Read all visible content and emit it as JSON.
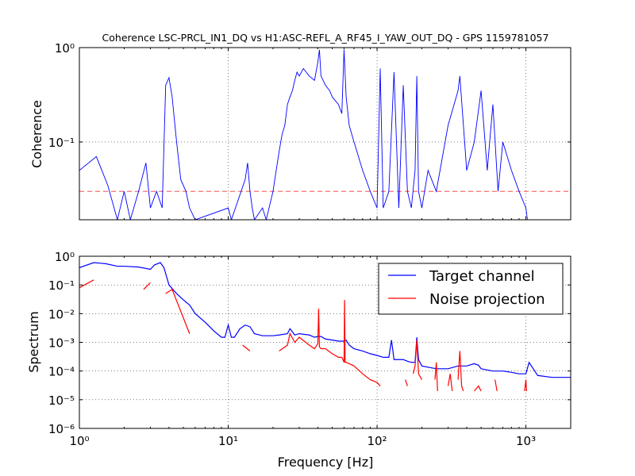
{
  "figure": {
    "title": "Coherence LSC-PRCL_IN1_DQ vs H1:ASC-REFL_A_RF45_I_YAW_OUT_DQ - GPS 1159781057",
    "xlabel": "Frequency [Hz]"
  },
  "chart_data": [
    {
      "type": "line",
      "panel": "top",
      "title": "Coherence LSC-PRCL_IN1_DQ vs H1:ASC-REFL_A_RF45_I_YAW_OUT_DQ - GPS 1159781057",
      "ylabel": "Coherence",
      "xscale": "log",
      "yscale": "log",
      "xlim": [
        1,
        2000
      ],
      "ylim": [
        0.015,
        1
      ],
      "grid": true,
      "x_ticks": [
        1,
        10,
        100,
        1000
      ],
      "y_ticks": [
        0.1,
        1
      ],
      "threshold": {
        "value": 0.03,
        "color": "#ff0000",
        "style": "dashed"
      },
      "series": [
        {
          "color": "#0000ff",
          "x": [
            1.0,
            1.3,
            1.55,
            1.8,
            2.0,
            2.2,
            2.5,
            2.8,
            3.0,
            3.3,
            3.6,
            3.8,
            4.0,
            4.2,
            4.5,
            4.8,
            5.2,
            5.5,
            6.0,
            10.0,
            10.5,
            13.0,
            13.5,
            14.0,
            14.5,
            15.0,
            17.0,
            18.0,
            20.0,
            21.0,
            22.0,
            23.0,
            24.0,
            25.0,
            26.0,
            27.0,
            28.0,
            29.0,
            30.0,
            32.0,
            35.0,
            38.0,
            40.0,
            41.0,
            42.0,
            45.0,
            48.0,
            50.0,
            55.0,
            58.0,
            60.0,
            62.0,
            65.0,
            70.0,
            75.0,
            80.0,
            90.0,
            100.0,
            105.0,
            110.0,
            120.0,
            130.0,
            140.0,
            150.0,
            160.0,
            170.0,
            180.0,
            185.0,
            190.0,
            200.0,
            220.0,
            250.0,
            300.0,
            350.0,
            360.0,
            400.0,
            450.0,
            500.0,
            550.0,
            600.0,
            650.0,
            700.0,
            800.0,
            900.0,
            1000.0,
            1024.0
          ],
          "values": [
            0.05,
            0.07,
            0.035,
            0.015,
            0.03,
            0.015,
            0.03,
            0.06,
            0.02,
            0.03,
            0.02,
            0.4,
            0.48,
            0.3,
            0.1,
            0.04,
            0.03,
            0.02,
            0.015,
            0.02,
            0.015,
            0.04,
            0.06,
            0.03,
            0.02,
            0.015,
            0.02,
            0.015,
            0.03,
            0.05,
            0.08,
            0.12,
            0.15,
            0.25,
            0.3,
            0.35,
            0.45,
            0.55,
            0.5,
            0.6,
            0.5,
            0.45,
            0.7,
            0.95,
            0.5,
            0.4,
            0.35,
            0.3,
            0.25,
            0.2,
            0.95,
            0.3,
            0.15,
            0.1,
            0.07,
            0.05,
            0.03,
            0.02,
            0.6,
            0.02,
            0.03,
            0.55,
            0.02,
            0.4,
            0.03,
            0.02,
            0.05,
            0.5,
            0.03,
            0.02,
            0.05,
            0.03,
            0.15,
            0.35,
            0.5,
            0.05,
            0.1,
            0.35,
            0.05,
            0.25,
            0.03,
            0.1,
            0.05,
            0.03,
            0.02,
            0.015
          ]
        }
      ]
    },
    {
      "type": "line",
      "panel": "bottom",
      "ylabel": "Spectrum",
      "xlabel": "Frequency [Hz]",
      "xscale": "log",
      "yscale": "log",
      "xlim": [
        1,
        2000
      ],
      "ylim": [
        1e-06,
        1
      ],
      "grid": true,
      "x_ticks": [
        1,
        10,
        100,
        1000
      ],
      "y_ticks": [
        1e-06,
        1e-05,
        0.0001,
        0.001,
        0.01,
        0.1,
        1
      ],
      "legend_position": "upper-right",
      "series": [
        {
          "name": "Target channel",
          "color": "#0000ff",
          "x": [
            1.0,
            1.25,
            1.5,
            1.8,
            2.0,
            2.5,
            3.0,
            3.2,
            3.5,
            3.7,
            4.0,
            4.5,
            5.0,
            5.5,
            6.0,
            7.0,
            8.0,
            9.0,
            9.5,
            10.0,
            10.5,
            11.0,
            12.0,
            13.0,
            14.0,
            15.0,
            17.0,
            20.0,
            22.0,
            25.0,
            26.0,
            28.0,
            30.0,
            35.0,
            38.0,
            40.0,
            42.0,
            45.0,
            50.0,
            55.0,
            60.0,
            62.0,
            65.0,
            70.0,
            80.0,
            90.0,
            100.0,
            110.0,
            120.0,
            125.0,
            130.0,
            150.0,
            160.0,
            170.0,
            180.0,
            185.0,
            190.0,
            200.0,
            250.0,
            300.0,
            350.0,
            400.0,
            450.0,
            480.0,
            500.0,
            600.0,
            700.0,
            800.0,
            900.0,
            1000.0,
            1050.0,
            1200.0,
            1500.0,
            2000.0
          ],
          "values": [
            0.4,
            0.6,
            0.55,
            0.45,
            0.45,
            0.42,
            0.35,
            0.5,
            0.6,
            0.4,
            0.1,
            0.05,
            0.03,
            0.02,
            0.01,
            0.005,
            0.0025,
            0.0015,
            0.0015,
            0.004,
            0.0015,
            0.0015,
            0.003,
            0.004,
            0.0035,
            0.002,
            0.0017,
            0.0017,
            0.0018,
            0.002,
            0.003,
            0.0018,
            0.002,
            0.0018,
            0.0015,
            0.0016,
            0.0016,
            0.0013,
            0.0012,
            0.0011,
            0.0011,
            0.0012,
            0.0008,
            0.0006,
            0.0005,
            0.0004,
            0.00035,
            0.0003,
            0.0003,
            0.0012,
            0.00025,
            0.00025,
            0.00022,
            0.0002,
            0.0002,
            0.0015,
            0.00025,
            0.00015,
            0.00012,
            0.00012,
            0.00015,
            0.00015,
            0.00018,
            0.00016,
            0.00012,
            0.0001,
            0.0001,
            9e-05,
            8e-05,
            8e-05,
            0.0002,
            7e-05,
            6e-05,
            6e-05
          ]
        },
        {
          "name": "Noise projection",
          "color": "#ff0000",
          "segments": [
            {
              "x": [
                1.0,
                1.25
              ],
              "values": [
                0.08,
                0.15
              ]
            },
            {
              "x": [
                2.7,
                3.0
              ],
              "values": [
                0.07,
                0.12
              ]
            },
            {
              "x": [
                3.8,
                4.2,
                5.5
              ],
              "values": [
                0.05,
                0.07,
                0.002
              ]
            },
            {
              "x": [
                12.5,
                14.0
              ],
              "values": [
                0.0008,
                0.0005
              ]
            },
            {
              "x": [
                22.0,
                25.0,
                26.0,
                28.0,
                30.0,
                35.0,
                38.0,
                40.0,
                40.5,
                41.0,
                42.0,
                45.0,
                50.0,
                55.0,
                58.0,
                60.0,
                60.5,
                61.0,
                62.0,
                65.0,
                70.0,
                80.0,
                90.0,
                100.0,
                105.0
              ],
              "values": [
                0.0005,
                0.0008,
                0.002,
                0.001,
                0.0015,
                0.0008,
                0.0006,
                0.0009,
                0.015,
                0.0007,
                0.0006,
                0.0006,
                0.0004,
                0.0003,
                0.0003,
                0.0002,
                0.03,
                0.0002,
                0.0002,
                0.00018,
                0.00015,
                8e-05,
                5e-05,
                4e-05,
                3e-05
              ]
            },
            {
              "x": [
                155.0,
                160.0
              ],
              "values": [
                5e-05,
                3e-05
              ]
            },
            {
              "x": [
                175.0,
                180.0,
                185.0,
                190.0,
                200.0
              ],
              "values": [
                8e-05,
                0.00015,
                0.0012,
                8e-05,
                5e-05
              ]
            },
            {
              "x": [
                245.0,
                250.0,
                255.0
              ],
              "values": [
                5e-05,
                0.0002,
                2e-05
              ]
            },
            {
              "x": [
                300.0,
                310.0,
                320.0
              ],
              "values": [
                3e-05,
                8e-05,
                2e-05
              ]
            },
            {
              "x": [
                350.0,
                360.0,
                370.0,
                380.0
              ],
              "values": [
                5e-05,
                0.0005,
                3e-05,
                2e-05
              ]
            },
            {
              "x": [
                450.0,
                480.0,
                500.0
              ],
              "values": [
                2e-05,
                3e-05,
                2e-05
              ]
            },
            {
              "x": [
                620.0,
                640.0
              ],
              "values": [
                5e-05,
                2e-05
              ]
            },
            {
              "x": [
                980.0,
                1000.0,
                1010.0
              ],
              "values": [
                2e-05,
                5e-05,
                2e-05
              ]
            }
          ]
        }
      ]
    }
  ]
}
